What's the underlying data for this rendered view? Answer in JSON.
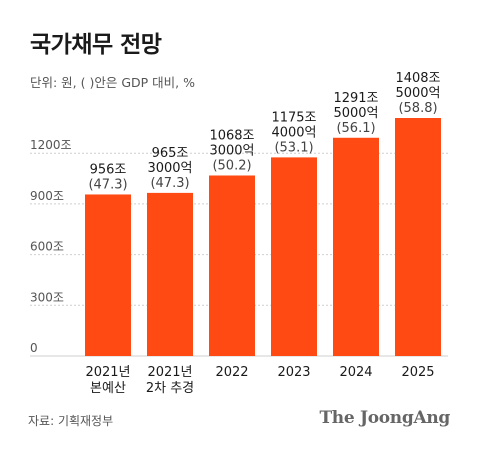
{
  "title": "국가채무 전망",
  "subtitle": "단위: 원, ( )안은 GDP 대비, %",
  "source": "자료: 기획재정부",
  "brand": "The JoongAng",
  "colors": {
    "bar": "#ff4a13",
    "grid": "#cfcfcf",
    "text": "#1a1a1a",
    "axis": "#555555"
  },
  "chart_data": {
    "type": "bar",
    "categories": [
      [
        "2021년",
        "본예산"
      ],
      [
        "2021년",
        "2차 추경"
      ],
      [
        "2022"
      ],
      [
        "2023"
      ],
      [
        "2024"
      ],
      [
        "2025"
      ]
    ],
    "values": [
      956,
      965.3,
      1068.3,
      1175.4,
      1291.5,
      1408.5
    ],
    "value_labels": [
      [
        "956조"
      ],
      [
        "965조",
        "3000억"
      ],
      [
        "1068조",
        "3000억"
      ],
      [
        "1175조",
        "4000억"
      ],
      [
        "1291조",
        "5000억"
      ],
      [
        "1408조",
        "5000억"
      ]
    ],
    "gdp_ratio_labels": [
      "(47.3)",
      "(47.3)",
      "(50.2)",
      "(53.1)",
      "(56.1)",
      "(58.8)"
    ],
    "y_ticks": [
      0,
      300,
      600,
      900,
      1200
    ],
    "y_tick_labels": [
      "0",
      "300조",
      "600조",
      "900조",
      "1200조"
    ],
    "ylim": [
      0,
      1408.5
    ],
    "grid": true
  }
}
